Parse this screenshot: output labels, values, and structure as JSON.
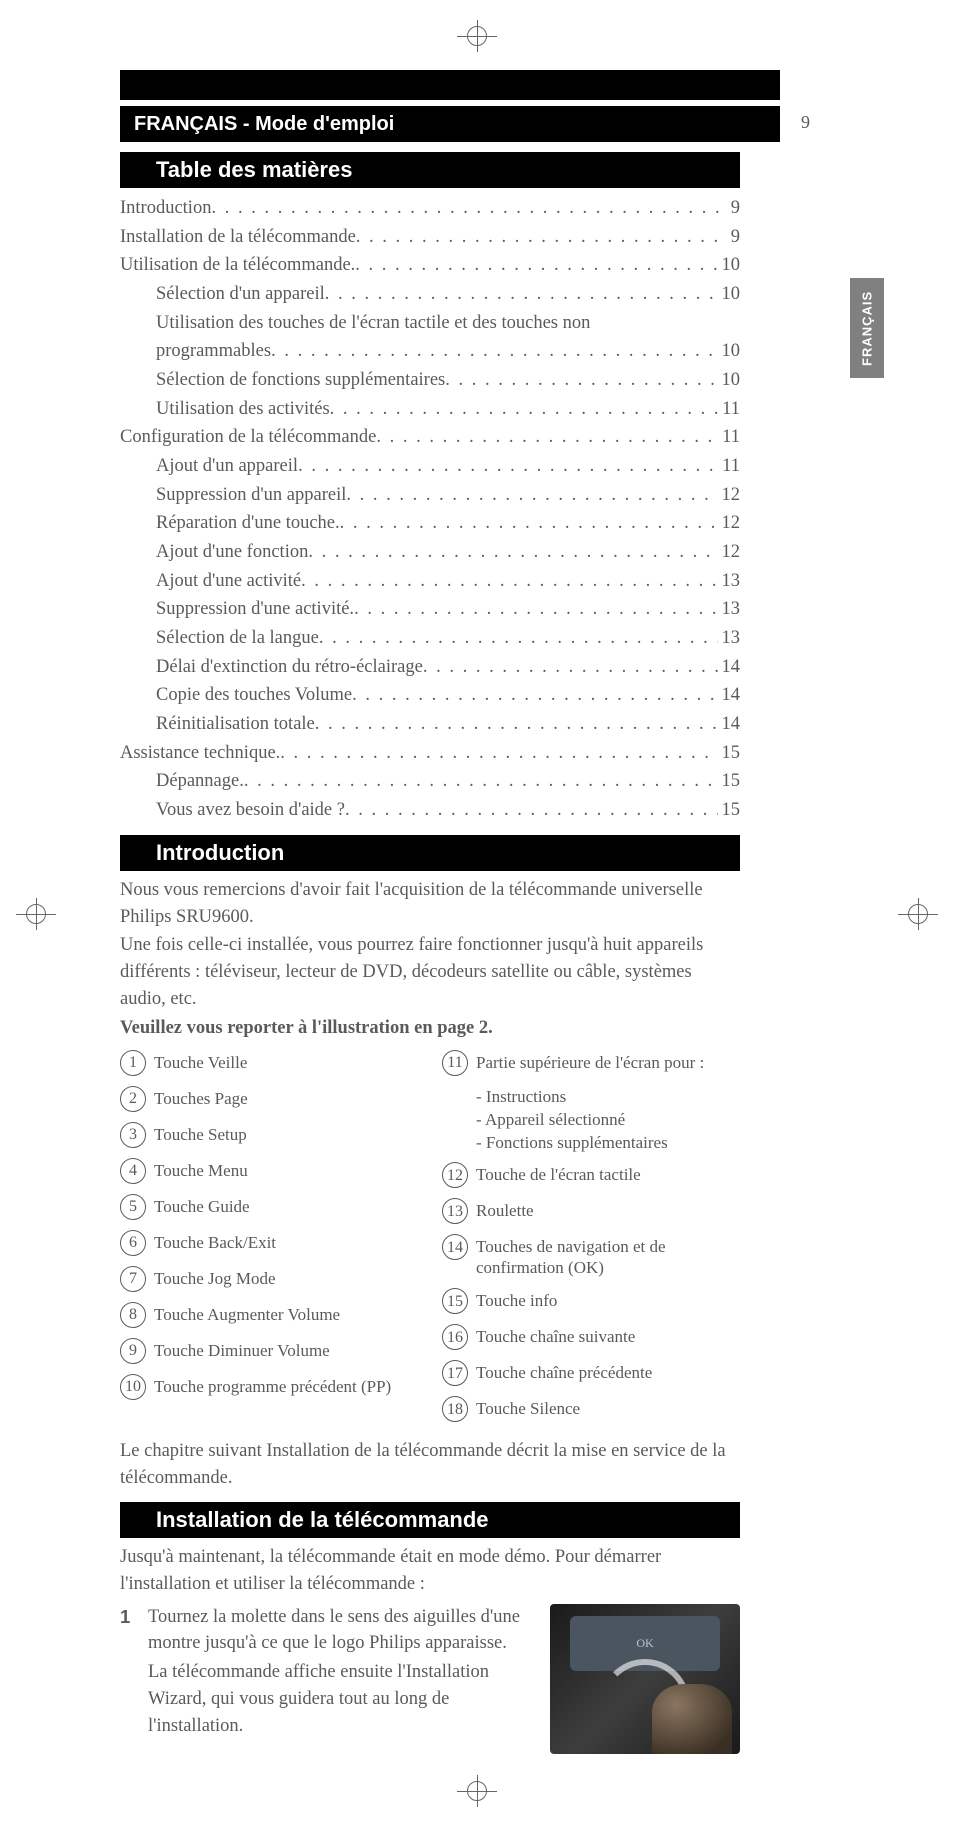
{
  "page_number": "9",
  "header_title": "FRANÇAIS - Mode d'emploi",
  "side_tab": "FRANÇAIS",
  "sections": {
    "toc_title": "Table des matières",
    "intro_title": "Introduction",
    "install_title": "Installation de la télécommande"
  },
  "toc": [
    {
      "label": "Introduction",
      "page": "9",
      "indent": 0
    },
    {
      "label": "Installation de la télécommande",
      "page": "9",
      "indent": 0
    },
    {
      "label": "Utilisation de la télécommande.",
      "page": "10",
      "indent": 0
    },
    {
      "label": "Sélection d'un appareil",
      "page": "10",
      "indent": 1
    },
    {
      "label": "Utilisation des touches de l'écran tactile et des touches non",
      "page": "",
      "indent": 1,
      "nodots": true
    },
    {
      "label": "programmables",
      "page": "10",
      "indent": 1
    },
    {
      "label": "Sélection de fonctions supplémentaires",
      "page": "10",
      "indent": 1
    },
    {
      "label": "Utilisation des activités",
      "page": "11",
      "indent": 1
    },
    {
      "label": "Configuration de la télécommande",
      "page": "11",
      "indent": 0
    },
    {
      "label": "Ajout d'un appareil",
      "page": "11",
      "indent": 1
    },
    {
      "label": "Suppression d'un appareil",
      "page": "12",
      "indent": 1
    },
    {
      "label": "Réparation d'une touche.",
      "page": "12",
      "indent": 1
    },
    {
      "label": "Ajout d'une fonction",
      "page": "12",
      "indent": 1
    },
    {
      "label": "Ajout d'une activité",
      "page": "13",
      "indent": 1
    },
    {
      "label": "Suppression d'une activité.",
      "page": "13",
      "indent": 1
    },
    {
      "label": "Sélection de la langue",
      "page": "13",
      "indent": 1
    },
    {
      "label": "Délai d'extinction du rétro-éclairage",
      "page": "14",
      "indent": 1
    },
    {
      "label": "Copie des touches Volume",
      "page": "14",
      "indent": 1
    },
    {
      "label": "Réinitialisation totale",
      "page": "14",
      "indent": 1
    },
    {
      "label": "Assistance technique.",
      "page": "15",
      "indent": 0
    },
    {
      "label": "Dépannage.",
      "page": "15",
      "indent": 1
    },
    {
      "label": "Vous avez besoin d'aide ?",
      "page": "15",
      "indent": 1
    }
  ],
  "intro_body": {
    "p1": "Nous vous remercions d'avoir fait l'acquisition de la télécommande universelle Philips SRU9600.",
    "p2": "Une fois celle-ci installée, vous pourrez faire fonctionner jusqu'à huit appareils différents : téléviseur, lecteur de DVD, décodeurs satellite ou câble, systèmes audio, etc.",
    "p3_bold": "Veuillez vous reporter à l'illustration en page 2."
  },
  "refs_left": [
    {
      "n": "1",
      "t": "Touche Veille"
    },
    {
      "n": "2",
      "t": "Touches Page"
    },
    {
      "n": "3",
      "t": "Touche Setup"
    },
    {
      "n": "4",
      "t": "Touche Menu"
    },
    {
      "n": "5",
      "t": "Touche Guide"
    },
    {
      "n": "6",
      "t": "Touche Back/Exit"
    },
    {
      "n": "7",
      "t": "Touche Jog Mode"
    },
    {
      "n": "8",
      "t": "Touche Augmenter Volume"
    },
    {
      "n": "9",
      "t": "Touche Diminuer Volume"
    },
    {
      "n": "10",
      "t": "Touche programme précédent (PP)"
    }
  ],
  "refs_right": [
    {
      "n": "11",
      "t": "Partie supérieure de l'écran pour :",
      "subs": [
        "- Instructions",
        "- Appareil sélectionné",
        "- Fonctions supplémentaires"
      ]
    },
    {
      "n": "12",
      "t": "Touche de l'écran tactile"
    },
    {
      "n": "13",
      "t": "Roulette"
    },
    {
      "n": "14",
      "t": "Touches de navigation et de confirmation (OK)"
    },
    {
      "n": "15",
      "t": "Touche info"
    },
    {
      "n": "16",
      "t": "Touche chaîne suivante"
    },
    {
      "n": "17",
      "t": "Touche chaîne précédente"
    },
    {
      "n": "18",
      "t": "Touche Silence"
    }
  ],
  "intro_outro": "Le chapitre suivant Installation de la télécommande décrit la mise en service de la télécommande.",
  "install_intro": "Jusqu'à maintenant, la télécommande était en mode démo. Pour démarrer l'installation et utiliser la télécommande :",
  "install_step_num": "1",
  "install_step_a": "Tournez la ",
  "install_step_b_bold": "molette",
  "install_step_c": " dans le sens des aiguilles d'une montre jusqu'à ce que le ",
  "install_step_d_bold": "logo Philips",
  "install_step_e": " apparaisse.",
  "install_step_f": "La télécommande affiche ensuite l'",
  "install_step_g_bold": "Installation Wizard",
  "install_step_h": ", qui vous guidera tout au long de l'installation.",
  "img_labels": {
    "ok": "OK"
  },
  "colors": {
    "text": "#5a5a5a",
    "black": "#000000",
    "white": "#ffffff",
    "grey_tab": "#808080"
  }
}
